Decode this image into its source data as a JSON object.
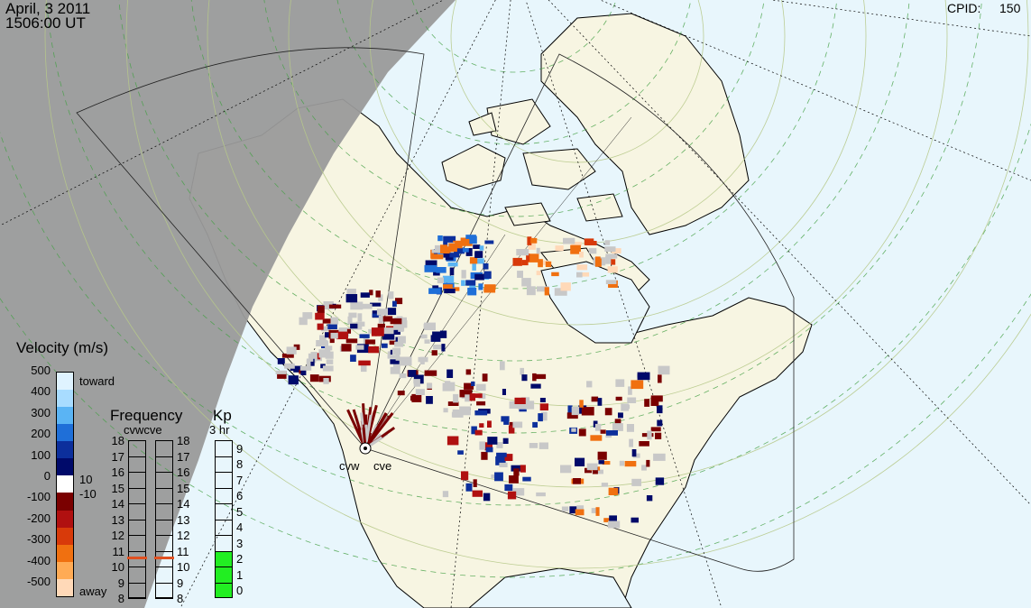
{
  "header": {
    "date": "April, 3 2011",
    "time": "1506:00 UT",
    "cpid_label": "CPID:",
    "cpid_value": "150"
  },
  "velocity_legend": {
    "title": "Velocity (m/s)",
    "ticks": [
      "500",
      "400",
      "300",
      "200",
      "100",
      "0",
      "-100",
      "-200",
      "-300",
      "-400",
      "-500"
    ],
    "toward_label": "toward",
    "away_label": "away",
    "threshold_pos": "10",
    "threshold_neg": "-10",
    "colors": [
      "#dff3ff",
      "#a8dcff",
      "#5ab4f4",
      "#1f6fd8",
      "#0c2f9c",
      "#000a6a",
      "#ffffff",
      "#7a0000",
      "#b01010",
      "#d83a0a",
      "#f07010",
      "#ffab55",
      "#ffd9b8"
    ]
  },
  "frequency_legend": {
    "title": "Frequency",
    "radars": "cvwcve",
    "ticks": [
      "18",
      "17",
      "16",
      "15",
      "14",
      "13",
      "12",
      "11",
      "10",
      "9",
      "8"
    ],
    "cvw_value": 10.6,
    "cve_value": 10.6,
    "marker_color": "#e05020"
  },
  "kp_legend": {
    "title": "Kp",
    "subtitle": "3 hr",
    "ticks": [
      "9",
      "8",
      "7",
      "6",
      "5",
      "4",
      "3",
      "2",
      "1",
      "0"
    ],
    "value": 3,
    "fill_color": "#22ee22"
  },
  "radar_sites": {
    "west_label": "cvw",
    "east_label": "cve"
  },
  "map_colors": {
    "ocean": "#e8f6fc",
    "land": "#f7f5e2",
    "night": "#9a9a9a",
    "ground_scatter": "#c8c8c8"
  }
}
